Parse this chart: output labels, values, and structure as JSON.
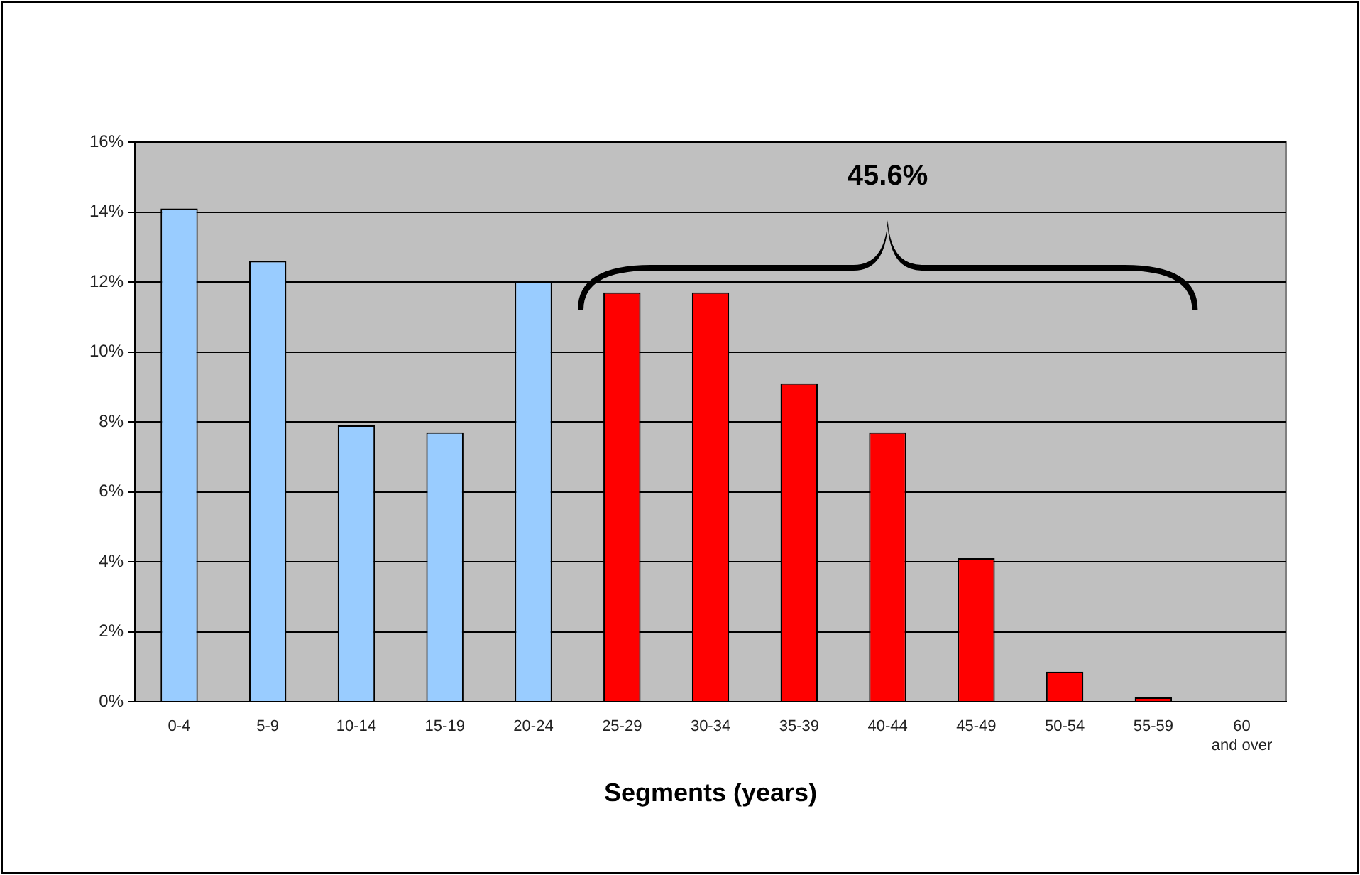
{
  "chart_data": {
    "type": "bar",
    "xlabel": "Segments (years)",
    "categories": [
      "0-4",
      "5-9",
      "10-14",
      "15-19",
      "20-24",
      "25-29",
      "30-34",
      "35-39",
      "40-44",
      "45-49",
      "50-54",
      "55-59",
      "60 and over"
    ],
    "values": [
      14.1,
      12.6,
      7.9,
      7.7,
      12.0,
      11.7,
      11.7,
      9.1,
      7.7,
      4.1,
      0.86,
      0.12,
      0
    ],
    "colors": [
      "#99ccff",
      "#99ccff",
      "#99ccff",
      "#99ccff",
      "#99ccff",
      "#ff0000",
      "#ff0000",
      "#ff0000",
      "#ff0000",
      "#ff0000",
      "#ff0000",
      "#ff0000",
      "#ff0000"
    ],
    "ylim": [
      0,
      16
    ],
    "yticks": [
      {
        "value": 0,
        "label": "0%"
      },
      {
        "value": 2,
        "label": "2%"
      },
      {
        "value": 4,
        "label": "4%"
      },
      {
        "value": 6,
        "label": "6%"
      },
      {
        "value": 8,
        "label": "8%"
      },
      {
        "value": 10,
        "label": "10%"
      },
      {
        "value": 12,
        "label": "12%"
      },
      {
        "value": 14,
        "label": "14%"
      },
      {
        "value": 16,
        "label": "16%"
      }
    ],
    "grid": "y",
    "legend": false,
    "annotations": [
      "45.6%"
    ]
  }
}
